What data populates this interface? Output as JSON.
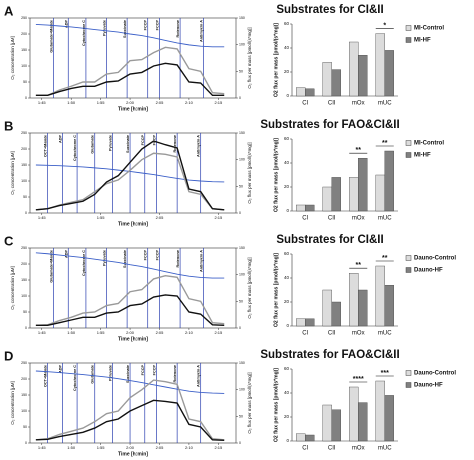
{
  "chart_data": [
    {
      "type": "line",
      "panel": "A",
      "xlabel": "Time [h:min]",
      "ylabel": "O₂ concentration [µM]",
      "y2label": "O₂ flux per mass [pmol/(s*mg)]",
      "x": [
        104,
        106,
        108,
        110,
        112,
        114,
        116,
        118,
        120,
        122,
        124,
        126,
        128,
        130,
        132,
        134,
        136
      ],
      "xlim": [
        103,
        138
      ],
      "xticks": [
        {
          "value": 105,
          "label": "1:45"
        },
        {
          "value": 110,
          "label": "1:50"
        },
        {
          "value": 115,
          "label": "1:55"
        },
        {
          "value": 120,
          "label": "2:00"
        },
        {
          "value": 125,
          "label": "2:05"
        },
        {
          "value": 130,
          "label": "2:10"
        },
        {
          "value": 135,
          "label": "2:15"
        }
      ],
      "ylim": [
        0,
        250
      ],
      "yticks": [
        0,
        50,
        100,
        150,
        200,
        250
      ],
      "y2lim": [
        0,
        150
      ],
      "y2ticks": [
        0,
        50,
        100,
        150
      ],
      "injections": [
        {
          "x": 107,
          "label": "Glutamate+Malate"
        },
        {
          "x": 109.5,
          "label": "ADP"
        },
        {
          "x": 112.5,
          "label": "Cytochrome C"
        },
        {
          "x": 116,
          "label": "Pyruvate"
        },
        {
          "x": 119.5,
          "label": "Succinate"
        },
        {
          "x": 123,
          "label": "FCCP"
        },
        {
          "x": 125,
          "label": "FCCP"
        },
        {
          "x": 128.5,
          "label": "Rotenone"
        },
        {
          "x": 132.5,
          "label": "Antimycin A"
        }
      ],
      "series": [
        {
          "name": "O₂ concentration",
          "color": "#3b5fc8",
          "values": [
            230,
            228,
            225,
            222,
            218,
            214,
            210,
            206,
            200,
            195,
            188,
            180,
            172,
            166,
            162,
            160,
            160
          ]
        },
        {
          "name": "MI-Control",
          "color": "#9a9a9a",
          "axis": "y2",
          "values": [
            5,
            5,
            15,
            22,
            30,
            30,
            45,
            48,
            70,
            72,
            85,
            95,
            92,
            55,
            50,
            10,
            8
          ]
        },
        {
          "name": "MI-HF",
          "color": "#111111",
          "axis": "y2",
          "values": [
            5,
            5,
            12,
            18,
            22,
            22,
            30,
            32,
            45,
            48,
            60,
            65,
            62,
            30,
            28,
            5,
            5
          ]
        }
      ]
    },
    {
      "type": "bar",
      "title": "Substrates for CI&II",
      "ylabel": "O2 flux per mass [pmol/(s*mg)]",
      "categories": [
        "CI",
        "CII",
        "mOx",
        "mUC"
      ],
      "ylim": [
        0,
        60
      ],
      "yticks": [
        0,
        20,
        40,
        60
      ],
      "significance": [
        null,
        null,
        null,
        "*"
      ],
      "series": [
        {
          "name": "MI-Control",
          "color": "#dcdcdc",
          "values": [
            7,
            28,
            45,
            52
          ]
        },
        {
          "name": "MI-HF",
          "color": "#808080",
          "values": [
            6,
            22,
            34,
            38
          ]
        }
      ]
    },
    {
      "type": "line",
      "panel": "B",
      "xlabel": "Time [h:min]",
      "ylabel": "O₂ concentration [µM]",
      "y2label": "O₂ flux per mass [pmol/(s*mg)]",
      "x": [
        104,
        106,
        108,
        110,
        112,
        114,
        116,
        118,
        120,
        122,
        124,
        126,
        128,
        130,
        132,
        134,
        136
      ],
      "xlim": [
        103,
        138
      ],
      "xticks": [
        {
          "value": 105,
          "label": "1:45"
        },
        {
          "value": 115,
          "label": "1:55"
        },
        {
          "value": 125,
          "label": "2:05"
        },
        {
          "value": 135,
          "label": "2:15"
        }
      ],
      "ylim": [
        0,
        250
      ],
      "yticks": [
        0,
        50,
        100,
        150,
        200,
        250
      ],
      "y2lim": [
        0,
        150
      ],
      "y2ticks": [
        0,
        50,
        100,
        150
      ],
      "injections": [
        {
          "x": 106,
          "label": "OCT+Malate"
        },
        {
          "x": 108.5,
          "label": "ADP"
        },
        {
          "x": 111,
          "label": "Cytochrome C"
        },
        {
          "x": 114,
          "label": "Glutamate"
        },
        {
          "x": 117,
          "label": "Pyruvate"
        },
        {
          "x": 120,
          "label": "Succinate"
        },
        {
          "x": 122.5,
          "label": "FCCP"
        },
        {
          "x": 124.5,
          "label": "FCCP"
        },
        {
          "x": 128,
          "label": "Rotenone"
        },
        {
          "x": 132,
          "label": "Antimycin A"
        }
      ],
      "series": [
        {
          "name": "O₂ concentration",
          "color": "#3b5fc8",
          "values": [
            150,
            149,
            148,
            146,
            144,
            141,
            138,
            134,
            130,
            125,
            120,
            114,
            108,
            103,
            100,
            98,
            97
          ]
        },
        {
          "name": "MI-Control",
          "color": "#9a9a9a",
          "axis": "y2",
          "values": [
            6,
            8,
            15,
            20,
            25,
            40,
            55,
            62,
            80,
            100,
            112,
            110,
            105,
            40,
            35,
            8,
            6
          ]
        },
        {
          "name": "MI-HF",
          "color": "#111111",
          "axis": "y2",
          "values": [
            6,
            8,
            14,
            18,
            22,
            35,
            58,
            70,
            95,
            120,
            135,
            128,
            122,
            45,
            40,
            8,
            6
          ]
        }
      ]
    },
    {
      "type": "bar",
      "title": "Substrates for FAO&CI&II",
      "ylabel": "O2 flux per mass [pmol/(s*mg)]",
      "categories": [
        "CI",
        "CII",
        "mOx",
        "mUC"
      ],
      "ylim": [
        0,
        60
      ],
      "yticks": [
        0,
        20,
        40,
        60
      ],
      "significance": [
        null,
        null,
        "**",
        "**"
      ],
      "series": [
        {
          "name": "MI-Control",
          "color": "#dcdcdc",
          "values": [
            5,
            20,
            28,
            30
          ]
        },
        {
          "name": "MI-HF",
          "color": "#808080",
          "values": [
            5,
            28,
            44,
            50
          ]
        }
      ]
    },
    {
      "type": "line",
      "panel": "C",
      "xlabel": "Time [h:min]",
      "ylabel": "O₂ concentration [µM]",
      "y2label": "O₂ flux per mass [pmol/(s*mg)]",
      "x": [
        104,
        106,
        108,
        110,
        112,
        114,
        116,
        118,
        120,
        122,
        124,
        126,
        128,
        130,
        132,
        134,
        136
      ],
      "xlim": [
        103,
        138
      ],
      "xticks": [
        {
          "value": 105,
          "label": "1:45"
        },
        {
          "value": 110,
          "label": "1:50"
        },
        {
          "value": 115,
          "label": "1:55"
        },
        {
          "value": 120,
          "label": "2:00"
        },
        {
          "value": 125,
          "label": "2:05"
        },
        {
          "value": 130,
          "label": "2:10"
        },
        {
          "value": 135,
          "label": "2:15"
        }
      ],
      "ylim": [
        0,
        250
      ],
      "yticks": [
        0,
        50,
        100,
        150,
        200,
        250
      ],
      "y2lim": [
        0,
        150
      ],
      "y2ticks": [
        0,
        50,
        100,
        150
      ],
      "injections": [
        {
          "x": 107,
          "label": "Glutamate+Malate"
        },
        {
          "x": 109.5,
          "label": "ADP"
        },
        {
          "x": 112.5,
          "label": "Cytochrome C"
        },
        {
          "x": 116,
          "label": "Pyruvate"
        },
        {
          "x": 119.5,
          "label": "Succinate"
        },
        {
          "x": 123,
          "label": "FCCP"
        },
        {
          "x": 125,
          "label": "FCCP"
        },
        {
          "x": 128.5,
          "label": "Rotenone"
        },
        {
          "x": 132.5,
          "label": "Antimycin A"
        }
      ],
      "series": [
        {
          "name": "O₂ concentration",
          "color": "#3b5fc8",
          "values": [
            235,
            232,
            228,
            224,
            220,
            215,
            210,
            205,
            198,
            192,
            184,
            176,
            168,
            162,
            158,
            156,
            156
          ]
        },
        {
          "name": "Dauno-Control",
          "color": "#9a9a9a",
          "axis": "y2",
          "values": [
            5,
            6,
            14,
            20,
            28,
            30,
            42,
            46,
            68,
            72,
            92,
            98,
            95,
            55,
            50,
            10,
            8
          ]
        },
        {
          "name": "Dauno-HF",
          "color": "#111111",
          "axis": "y2",
          "values": [
            5,
            5,
            10,
            15,
            20,
            20,
            28,
            30,
            42,
            45,
            58,
            62,
            60,
            30,
            26,
            6,
            5
          ]
        }
      ]
    },
    {
      "type": "bar",
      "title": "Substrates for CI&II",
      "ylabel": "O2 flux per mass [pmol/(s*mg)]",
      "categories": [
        "CI",
        "CII",
        "mOx",
        "mUC"
      ],
      "ylim": [
        0,
        60
      ],
      "yticks": [
        0,
        20,
        40,
        60
      ],
      "significance": [
        null,
        null,
        "**",
        "**"
      ],
      "series": [
        {
          "name": "Dauno-Control",
          "color": "#dcdcdc",
          "values": [
            6,
            30,
            44,
            50
          ]
        },
        {
          "name": "Dauno-HF",
          "color": "#808080",
          "values": [
            6,
            20,
            30,
            34
          ]
        }
      ]
    },
    {
      "type": "line",
      "panel": "D",
      "xlabel": "Time [h:min]",
      "ylabel": "O₂ concentration [µM]",
      "y2label": "O₂ flux per mass [pmol/(s*mg)]",
      "x": [
        104,
        106,
        108,
        110,
        112,
        114,
        116,
        118,
        120,
        122,
        124,
        126,
        128,
        130,
        132,
        134,
        136
      ],
      "xlim": [
        103,
        138
      ],
      "xticks": [
        {
          "value": 105,
          "label": "1:45"
        },
        {
          "value": 110,
          "label": "1:50"
        },
        {
          "value": 115,
          "label": "1:55"
        },
        {
          "value": 120,
          "label": "2:00"
        },
        {
          "value": 125,
          "label": "2:05"
        },
        {
          "value": 130,
          "label": "2:10"
        },
        {
          "value": 135,
          "label": "2:15"
        }
      ],
      "ylim": [
        0,
        250
      ],
      "yticks": [
        0,
        50,
        100,
        150,
        200,
        250
      ],
      "y2lim": [
        0,
        150
      ],
      "y2ticks": [
        0,
        50,
        100,
        150
      ],
      "injections": [
        {
          "x": 106,
          "label": "OCT+Malate"
        },
        {
          "x": 108.5,
          "label": "ADP"
        },
        {
          "x": 111,
          "label": "Cytochrome C"
        },
        {
          "x": 114,
          "label": "Glutamate"
        },
        {
          "x": 117,
          "label": "Pyruvate"
        },
        {
          "x": 120,
          "label": "Succinate"
        },
        {
          "x": 122.5,
          "label": "FCCP"
        },
        {
          "x": 124.5,
          "label": "FCCP"
        },
        {
          "x": 128,
          "label": "Rotenone"
        },
        {
          "x": 132,
          "label": "Antimycin A"
        }
      ],
      "series": [
        {
          "name": "O₂ concentration",
          "color": "#3b5fc8",
          "values": [
            225,
            223,
            220,
            217,
            214,
            210,
            206,
            201,
            195,
            189,
            182,
            175,
            168,
            162,
            158,
            156,
            155
          ]
        },
        {
          "name": "Dauno-Control",
          "color": "#9a9a9a",
          "axis": "y2",
          "values": [
            6,
            8,
            16,
            22,
            28,
            40,
            55,
            60,
            85,
            100,
            118,
            115,
            110,
            45,
            40,
            8,
            6
          ]
        },
        {
          "name": "Dauno-HF",
          "color": "#111111",
          "axis": "y2",
          "values": [
            6,
            7,
            12,
            16,
            20,
            28,
            40,
            45,
            60,
            70,
            80,
            78,
            75,
            35,
            30,
            6,
            5
          ]
        }
      ]
    },
    {
      "type": "bar",
      "title": "Substrates for FAO&CI&II",
      "ylabel": "O2 flux per mass [pmol/(s*mg)]",
      "categories": [
        "CI",
        "CII",
        "mOx",
        "mUC"
      ],
      "ylim": [
        0,
        60
      ],
      "yticks": [
        0,
        20,
        40,
        60
      ],
      "significance": [
        null,
        null,
        "****",
        "***"
      ],
      "series": [
        {
          "name": "Dauno-Control",
          "color": "#dcdcdc",
          "values": [
            6,
            30,
            45,
            50
          ]
        },
        {
          "name": "Dauno-HF",
          "color": "#808080",
          "values": [
            5,
            26,
            32,
            38
          ]
        }
      ]
    }
  ]
}
